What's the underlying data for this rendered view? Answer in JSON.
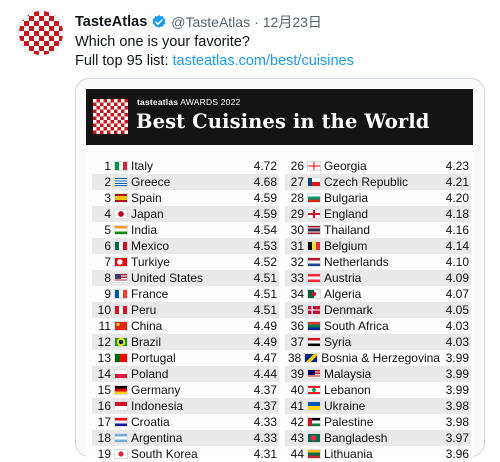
{
  "tweet": {
    "author_name": "TasteAtlas",
    "handle": "@TasteAtlas",
    "separator": "·",
    "date": "12月23日",
    "line1": "Which one is your favorite?",
    "line2_prefix": "Full top 95 list: ",
    "line2_link": "tasteatlas.com/best/cuisines",
    "verified_color": "#1d9bf0"
  },
  "infographic": {
    "brand_bold": "tasteatlas",
    "brand_rest": " AWARDS 2022",
    "title": "Best Cuisines in the World",
    "left_column": [
      {
        "rank": "1",
        "country": "Italy",
        "score": "4.72",
        "flag": "italy"
      },
      {
        "rank": "2",
        "country": "Greece",
        "score": "4.68",
        "flag": "greece"
      },
      {
        "rank": "3",
        "country": "Spain",
        "score": "4.59",
        "flag": "spain"
      },
      {
        "rank": "4",
        "country": "Japan",
        "score": "4.59",
        "flag": "japan"
      },
      {
        "rank": "5",
        "country": "India",
        "score": "4.54",
        "flag": "india"
      },
      {
        "rank": "6",
        "country": "Mexico",
        "score": "4.53",
        "flag": "mexico"
      },
      {
        "rank": "7",
        "country": "Turkiye",
        "score": "4.52",
        "flag": "turkiye"
      },
      {
        "rank": "8",
        "country": "United States",
        "score": "4.51",
        "flag": "usa"
      },
      {
        "rank": "9",
        "country": "France",
        "score": "4.51",
        "flag": "france"
      },
      {
        "rank": "10",
        "country": "Peru",
        "score": "4.51",
        "flag": "peru"
      },
      {
        "rank": "11",
        "country": "China",
        "score": "4.49",
        "flag": "china"
      },
      {
        "rank": "12",
        "country": "Brazil",
        "score": "4.49",
        "flag": "brazil"
      },
      {
        "rank": "13",
        "country": "Portugal",
        "score": "4.47",
        "flag": "portugal"
      },
      {
        "rank": "14",
        "country": "Poland",
        "score": "4.44",
        "flag": "poland"
      },
      {
        "rank": "15",
        "country": "Germany",
        "score": "4.37",
        "flag": "germany"
      },
      {
        "rank": "16",
        "country": "Indonesia",
        "score": "4.37",
        "flag": "indonesia"
      },
      {
        "rank": "17",
        "country": "Croatia",
        "score": "4.33",
        "flag": "croatia"
      },
      {
        "rank": "18",
        "country": "Argentina",
        "score": "4.33",
        "flag": "argentina"
      },
      {
        "rank": "19",
        "country": "South Korea",
        "score": "4.31",
        "flag": "southkorea"
      }
    ],
    "right_column": [
      {
        "rank": "26",
        "country": "Georgia",
        "score": "4.23",
        "flag": "georgia"
      },
      {
        "rank": "27",
        "country": "Czech Republic",
        "score": "4.21",
        "flag": "czech"
      },
      {
        "rank": "28",
        "country": "Bulgaria",
        "score": "4.20",
        "flag": "bulgaria"
      },
      {
        "rank": "29",
        "country": "England",
        "score": "4.18",
        "flag": "england"
      },
      {
        "rank": "30",
        "country": "Thailand",
        "score": "4.16",
        "flag": "thailand"
      },
      {
        "rank": "31",
        "country": "Belgium",
        "score": "4.14",
        "flag": "belgium"
      },
      {
        "rank": "32",
        "country": "Netherlands",
        "score": "4.10",
        "flag": "netherlands"
      },
      {
        "rank": "33",
        "country": "Austria",
        "score": "4.09",
        "flag": "austria"
      },
      {
        "rank": "34",
        "country": "Algeria",
        "score": "4.07",
        "flag": "algeria"
      },
      {
        "rank": "35",
        "country": "Denmark",
        "score": "4.05",
        "flag": "denmark"
      },
      {
        "rank": "36",
        "country": "South Africa",
        "score": "4.03",
        "flag": "southafrica"
      },
      {
        "rank": "37",
        "country": "Syria",
        "score": "4.03",
        "flag": "syria"
      },
      {
        "rank": "38",
        "country": "Bosnia & Herzegovina",
        "score": "3.99",
        "flag": "bosnia"
      },
      {
        "rank": "39",
        "country": "Malaysia",
        "score": "3.99",
        "flag": "malaysia"
      },
      {
        "rank": "40",
        "country": "Lebanon",
        "score": "3.99",
        "flag": "lebanon"
      },
      {
        "rank": "41",
        "country": "Ukraine",
        "score": "3.98",
        "flag": "ukraine"
      },
      {
        "rank": "42",
        "country": "Palestine",
        "score": "3.98",
        "flag": "palestine"
      },
      {
        "rank": "43",
        "country": "Bangladesh",
        "score": "3.97",
        "flag": "bangladesh"
      },
      {
        "rank": "44",
        "country": "Lithuania",
        "score": "3.96",
        "flag": "lithuania"
      }
    ]
  }
}
